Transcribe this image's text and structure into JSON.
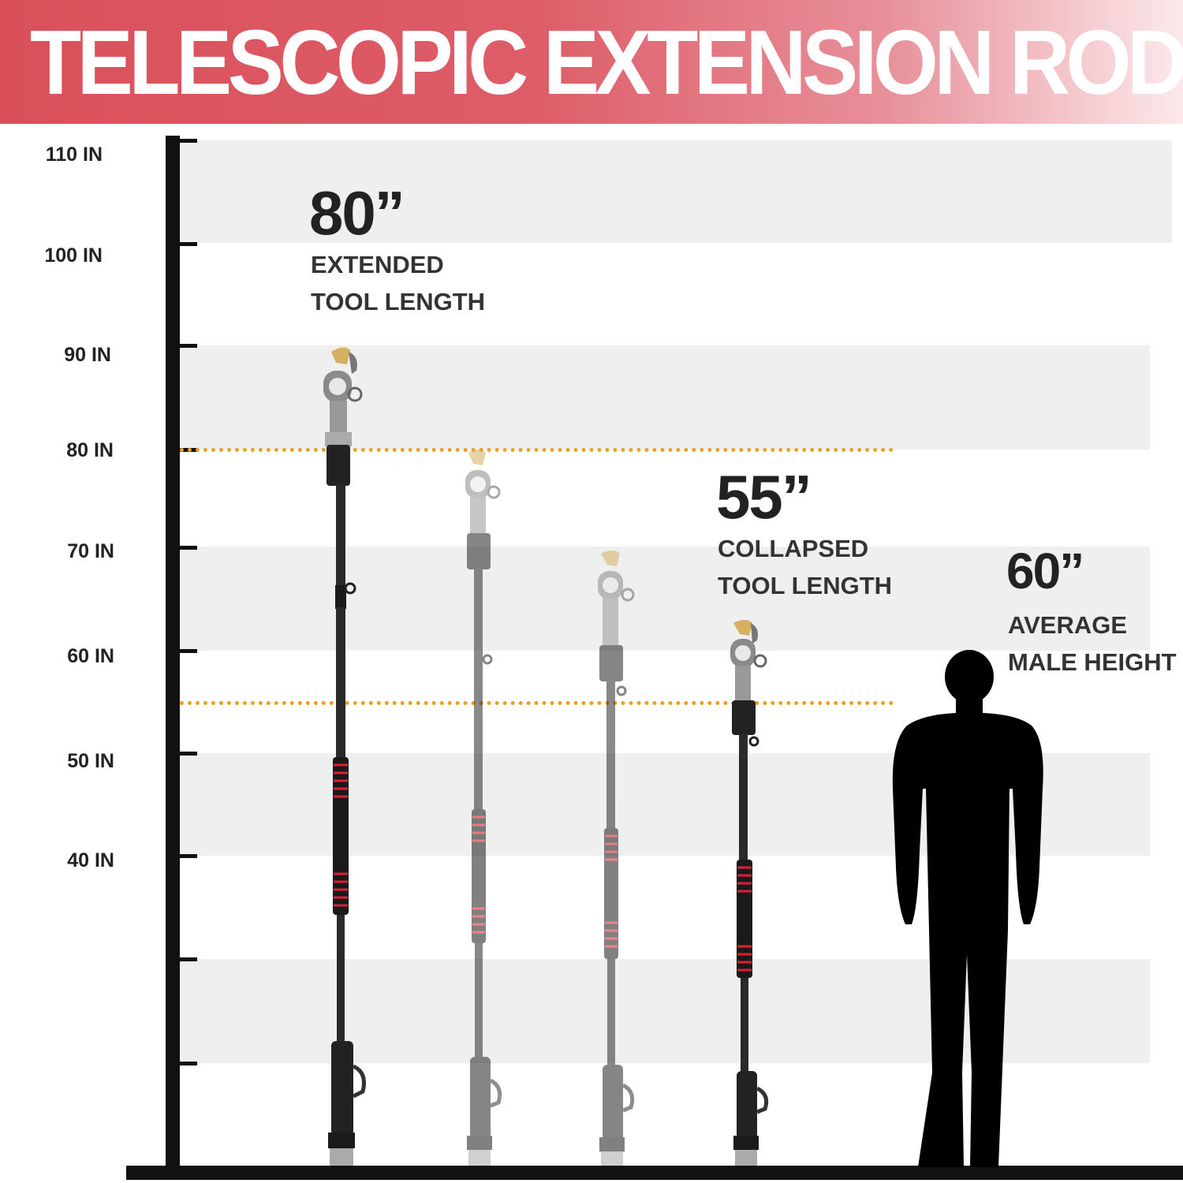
{
  "banner": {
    "title": "TELESCOPIC EXTENSION ROD"
  },
  "scale": {
    "labels": [
      "110 IN",
      "100 IN",
      "90 IN",
      "80 IN",
      "70 IN",
      "60 IN",
      "50 IN",
      "40 IN"
    ],
    "marker_color": "#f0a020"
  },
  "extended": {
    "value": "80”",
    "line1": "EXTENDED",
    "line2": "TOOL LENGTH"
  },
  "collapsed": {
    "value": "55”",
    "line1": "COLLAPSED",
    "line2": "TOOL LENGTH"
  },
  "male": {
    "value": "60”",
    "line1": "AVERAGE",
    "line2": "MALE HEIGHT"
  },
  "colors": {
    "banner": "#d9505a",
    "grip_rings": "#e02030",
    "blade": "#d4b060"
  }
}
